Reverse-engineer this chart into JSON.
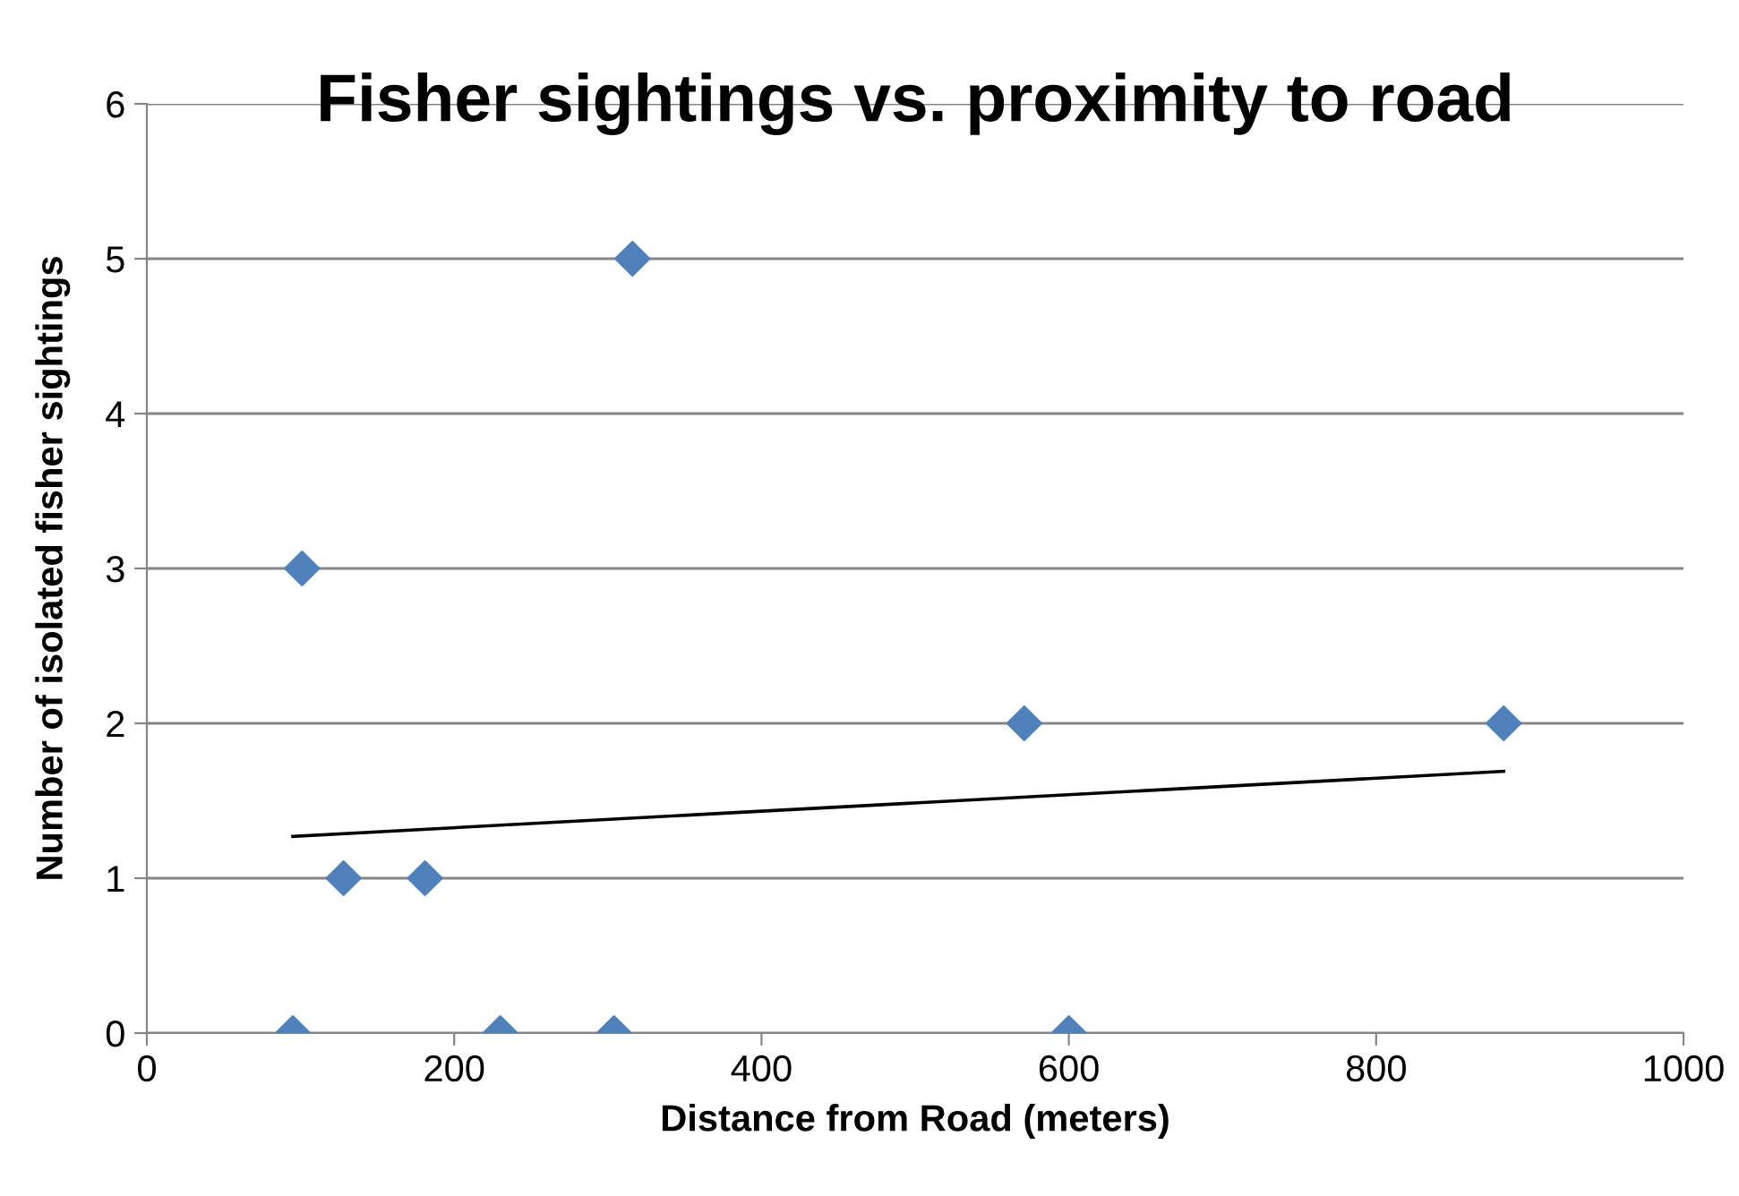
{
  "chart_data": {
    "type": "scatter",
    "title": "Fisher sightings vs. proximity to road",
    "xlabel": "Distance from Road (meters)",
    "ylabel": "Number of isolated fisher sightings",
    "series": [
      {
        "color": "#4f81bd",
        "marker": "diamond",
        "x": [
          95,
          101,
          128,
          181,
          230,
          304,
          316,
          571,
          600,
          883
        ],
        "values": [
          0,
          3,
          1,
          1,
          0,
          0,
          5,
          2,
          0,
          2
        ]
      },
      {
        "type": "line",
        "color": "#000000",
        "marker": "none",
        "x": [
          95,
          883
        ],
        "values": [
          1.27,
          1.69
        ]
      }
    ],
    "xlim": [
      0,
      1000
    ],
    "xticks": [
      0,
      200,
      400,
      600,
      800,
      1000
    ],
    "ylim": [
      0,
      6
    ],
    "yticks": [
      0,
      1,
      2,
      3,
      4,
      5,
      6
    ],
    "grid": "y",
    "legend": false
  }
}
